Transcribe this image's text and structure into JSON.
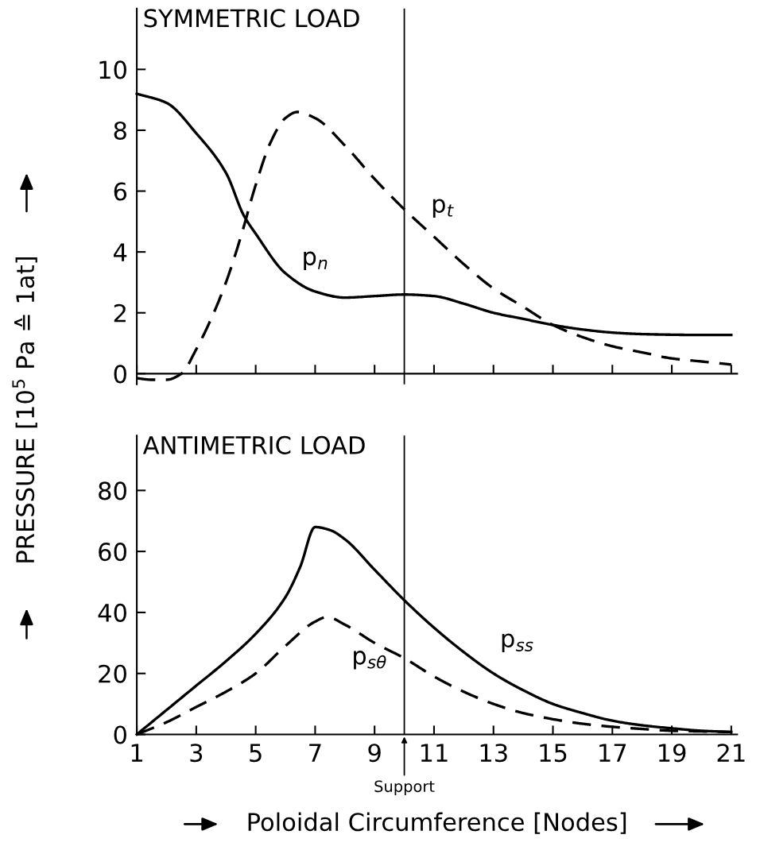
{
  "chart_data": [
    {
      "type": "line",
      "title": "SYMMETRIC LOAD",
      "ylabel": "PRESSURE [10$^{5}$ Pa ≙ 1at]",
      "tick_labels": "y",
      "marker": "none",
      "xlim": [
        1,
        21.2
      ],
      "ylim": [
        -0.35,
        12
      ],
      "xticks": [
        {
          "value": 1,
          "label": null
        },
        {
          "value": 3,
          "label": null
        },
        {
          "value": 5,
          "label": null
        },
        {
          "value": 7,
          "label": null
        },
        {
          "value": 9,
          "label": null
        },
        {
          "value": 11,
          "label": null
        },
        {
          "value": 13,
          "label": null
        },
        {
          "value": 15,
          "label": null
        },
        {
          "value": 17,
          "label": null
        },
        {
          "value": 19,
          "label": null
        },
        {
          "value": 21,
          "label": null
        }
      ],
      "yticks": [
        0,
        2,
        4,
        6,
        8,
        10
      ],
      "ref_lines": [
        {
          "axis": "x",
          "value": 10,
          "color": "#000000"
        }
      ],
      "series": [
        {
          "name": "p$_{t}$",
          "color": "#000000",
          "line_style": "dashed",
          "x": [
            1,
            1.5,
            2,
            2.5,
            3,
            3.5,
            4,
            4.5,
            5,
            5.5,
            6,
            6.4,
            7,
            8,
            9,
            10,
            11,
            12,
            13,
            14,
            15,
            16,
            17,
            18,
            19,
            20,
            21
          ],
          "values": [
            -0.15,
            -0.2,
            -0.2,
            0,
            0.8,
            1.8,
            3.0,
            4.5,
            6.2,
            7.6,
            8.4,
            8.6,
            8.4,
            7.5,
            6.4,
            5.4,
            4.5,
            3.6,
            2.8,
            2.2,
            1.6,
            1.2,
            0.9,
            0.7,
            0.5,
            0.4,
            0.3
          ]
        },
        {
          "name": "p$_{n}$",
          "color": "#000000",
          "line_style": "solid",
          "x": [
            1,
            2,
            3,
            4,
            4.6,
            5,
            6,
            7,
            8,
            9,
            10,
            11,
            12,
            13,
            14,
            15,
            16,
            17,
            18,
            19,
            20,
            21
          ],
          "values": [
            9.2,
            8.9,
            7.9,
            6.6,
            5.2,
            4.6,
            3.3,
            2.7,
            2.5,
            2.55,
            2.6,
            2.55,
            2.3,
            2.0,
            1.8,
            1.6,
            1.45,
            1.35,
            1.3,
            1.28,
            1.27,
            1.27
          ]
        }
      ]
    },
    {
      "type": "line",
      "title": "ANTIMETRIC LOAD",
      "xlabel": "Poloidal Circumference [Nodes]",
      "marker": "none",
      "xlim": [
        1,
        21.2
      ],
      "ylim": [
        0,
        98
      ],
      "xticks": [
        1,
        3,
        5,
        7,
        9,
        11,
        13,
        15,
        17,
        19,
        21
      ],
      "yticks": [
        0,
        20,
        40,
        60,
        80
      ],
      "ref_lines": [
        {
          "axis": "x",
          "value": 10,
          "label": "Support",
          "color": "#000000"
        }
      ],
      "series": [
        {
          "name": "p$_{ss}$",
          "color": "#000000",
          "line_style": "solid",
          "x": [
            1,
            2,
            3,
            4,
            5,
            6,
            6.5,
            7,
            7.5,
            8,
            9,
            10,
            11,
            12,
            13,
            14,
            15,
            16,
            17,
            18,
            19,
            20,
            21
          ],
          "values": [
            0,
            8,
            16,
            24,
            33,
            45,
            55,
            68,
            67,
            64,
            54,
            44,
            35,
            27,
            20,
            14.5,
            10,
            7,
            4.5,
            3,
            2,
            1.2,
            0.8
          ]
        },
        {
          "name": "p$_{sθ}$",
          "color": "#000000",
          "line_style": "dashed",
          "x": [
            1,
            2,
            3,
            4,
            5,
            6,
            7,
            7.4,
            8,
            9,
            10,
            11,
            12,
            13,
            14,
            15,
            16,
            17,
            18,
            19,
            20,
            21
          ],
          "values": [
            0,
            4,
            9,
            14,
            20,
            29,
            37,
            38.5,
            36,
            30,
            25,
            19,
            14,
            10,
            7,
            5,
            3.5,
            2.5,
            1.8,
            1.2,
            1,
            0.8
          ]
        }
      ]
    }
  ]
}
